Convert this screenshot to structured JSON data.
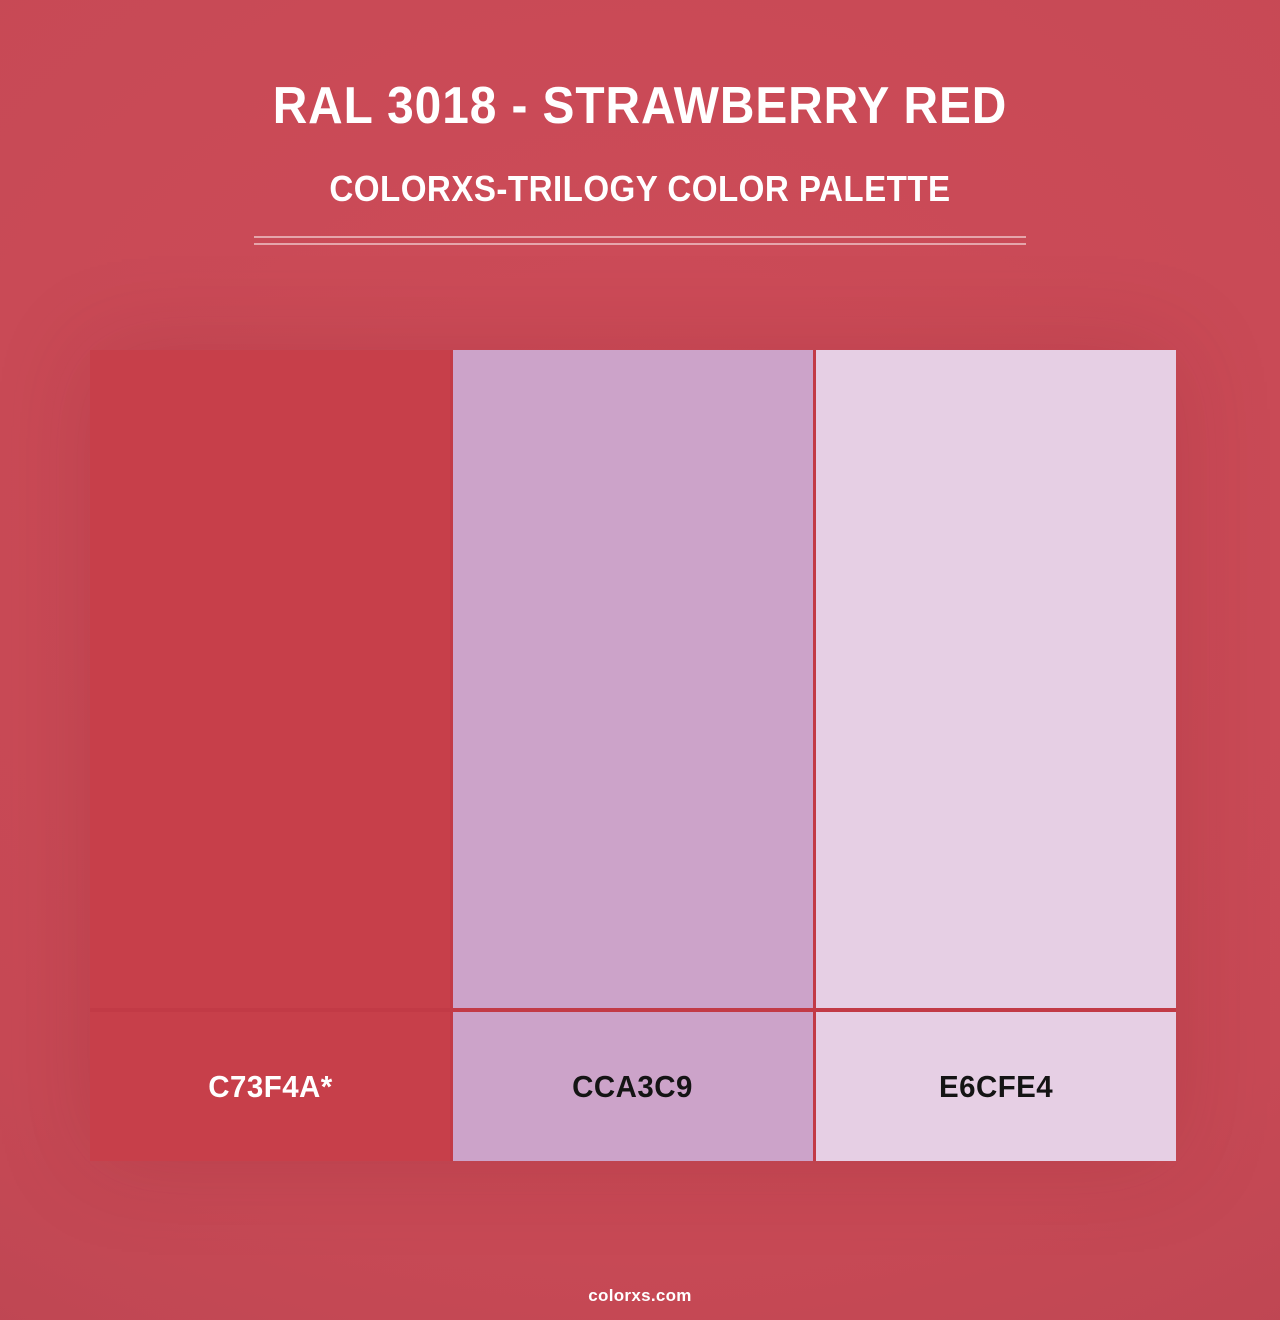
{
  "header": {
    "title": "RAL 3018 - STRAWBERRY RED",
    "subtitle": "COLORXS-TRILOGY COLOR PALETTE"
  },
  "palette": {
    "swatches": [
      {
        "label": "C73F4A*",
        "color": "#C73F4A",
        "label_text_color": "#FFFFFF"
      },
      {
        "label": "CCA3C9",
        "color": "#CCA3C9",
        "label_text_color": "#141414"
      },
      {
        "label": "E6CFE4",
        "color": "#E6CFE4",
        "label_text_color": "#141414"
      }
    ],
    "separator_color": "#C23A46"
  },
  "footer": {
    "watermark": "colorxs.com"
  },
  "theme": {
    "background_center": "#CE4C59",
    "background_mid": "#C74955",
    "background_edge": "#AD414E",
    "heading_text_color": "#FFFFFF",
    "divider_color": "rgba(255,255,255,0.5)"
  }
}
